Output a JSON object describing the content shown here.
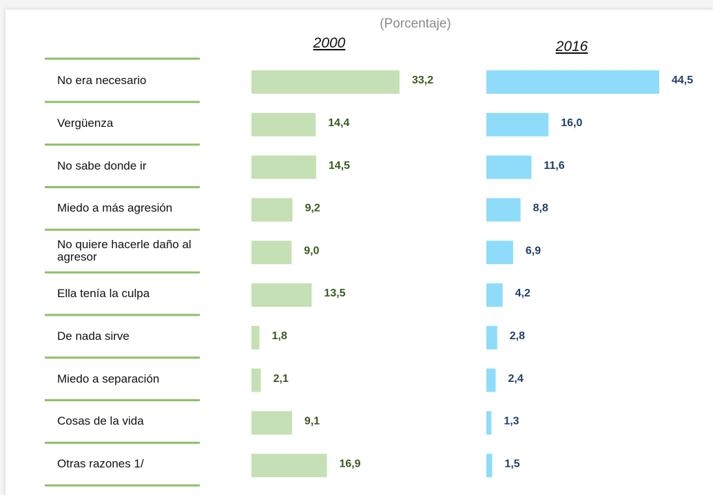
{
  "chart_data": {
    "type": "bar",
    "orientation": "horizontal",
    "subtitle": "(Porcentaje)",
    "categories": [
      "No era necesario",
      "Vergüenza",
      "No sabe donde ir",
      "Miedo a más agresión",
      "No quiere hacerle daño al agresor",
      "Ella tenía la culpa",
      "De nada sirve",
      "Miedo a separación",
      "Cosas de la vida",
      "Otras razones 1/"
    ],
    "series": [
      {
        "name": "2000",
        "color": "#c5e0b4",
        "label_color": "#3a5a1e",
        "values": [
          33.2,
          14.4,
          14.5,
          9.2,
          9.0,
          13.5,
          1.8,
          2.1,
          9.1,
          16.9
        ],
        "value_labels": [
          "33,2",
          "14,4",
          "14,5",
          "9,2",
          "9,0",
          "13,5",
          "1,8",
          "2,1",
          "9,1",
          "16,9"
        ]
      },
      {
        "name": "2016",
        "color": "#8fdcfa",
        "label_color": "#1f3f66",
        "values": [
          44.5,
          16.0,
          11.6,
          8.8,
          6.9,
          4.2,
          2.8,
          2.4,
          1.3,
          1.5
        ],
        "value_labels": [
          "44,5",
          "16,0",
          "11,6",
          "8,8",
          "6,9",
          "4,2",
          "2,8",
          "2,4",
          "1,3",
          "1,5"
        ]
      }
    ]
  }
}
